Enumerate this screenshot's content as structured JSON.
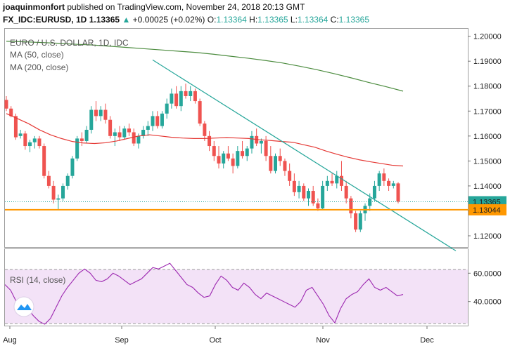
{
  "header": {
    "author": "joaquinmonfort",
    "published_text": "published on TradingView.com, November 24, 2018 20:13 GMT",
    "symbol": "FX_IDC:EURUSD, 1D",
    "last": "1.13365",
    "change": "+0.00025 (+0.02%)",
    "o_label": "O:",
    "o_value": "1.13364",
    "h_label": "H:",
    "h_value": "1.13365",
    "l_label": "L:",
    "l_value": "1.13364",
    "c_label": "C:",
    "c_value": "1.13365"
  },
  "colors": {
    "up": "#26a69a",
    "down": "#ef5350",
    "ma50": "#e53935",
    "ma200": "#4c8c3f",
    "trendline": "#26a69a",
    "support": "#ff9800",
    "rsi_line": "#9c27b0",
    "rsi_band": "#f3e2f7"
  },
  "chart_data": [
    {
      "type": "candlestick",
      "title": "EURO / U.S. DOLLAR, 1D, IDC",
      "legend": [
        "MA (50, close)",
        "MA (200, close)"
      ],
      "x_tick_labels": [
        "Aug",
        "Sep",
        "Oct",
        "Nov",
        "Dec"
      ],
      "y_tick_labels": [
        "1.12000",
        "1.13000",
        "1.14000",
        "1.15000",
        "1.16000",
        "1.17000",
        "1.18000",
        "1.19000",
        "1.20000"
      ],
      "ylim": [
        1.1155,
        1.203
      ],
      "price_tags": [
        "1.13365",
        "1.13044"
      ],
      "last_price": 1.13365,
      "support_level": 1.13044,
      "trendline": [
        [
          1.1905,
          1.114
        ]
      ],
      "candles": [
        [
          1.1745,
          1.176,
          1.17,
          1.171
        ],
        [
          1.171,
          1.172,
          1.1675,
          1.168
        ],
        [
          1.168,
          1.169,
          1.1585,
          1.1595
        ],
        [
          1.16,
          1.1625,
          1.159,
          1.161
        ],
        [
          1.161,
          1.162,
          1.1545,
          1.156
        ],
        [
          1.156,
          1.1585,
          1.1535,
          1.1575
        ],
        [
          1.1575,
          1.16,
          1.155,
          1.159
        ],
        [
          1.159,
          1.16,
          1.155,
          1.156
        ],
        [
          1.156,
          1.157,
          1.143,
          1.144
        ],
        [
          1.144,
          1.146,
          1.139,
          1.14
        ],
        [
          1.14,
          1.142,
          1.133,
          1.1345
        ],
        [
          1.1345,
          1.1365,
          1.1305,
          1.135
        ],
        [
          1.135,
          1.141,
          1.134,
          1.14
        ],
        [
          1.14,
          1.145,
          1.1385,
          1.144
        ],
        [
          1.144,
          1.152,
          1.143,
          1.151
        ],
        [
          1.151,
          1.16,
          1.15,
          1.159
        ],
        [
          1.159,
          1.1615,
          1.156,
          1.158
        ],
        [
          1.158,
          1.164,
          1.157,
          1.1625
        ],
        [
          1.1625,
          1.172,
          1.161,
          1.1705
        ],
        [
          1.1705,
          1.174,
          1.166,
          1.168
        ],
        [
          1.168,
          1.172,
          1.166,
          1.1705
        ],
        [
          1.1705,
          1.173,
          1.165,
          1.1665
        ],
        [
          1.1665,
          1.168,
          1.159,
          1.16
        ],
        [
          1.16,
          1.163,
          1.156,
          1.1615
        ],
        [
          1.1615,
          1.164,
          1.158,
          1.1595
        ],
        [
          1.1595,
          1.164,
          1.1585,
          1.163
        ],
        [
          1.163,
          1.165,
          1.16,
          1.1615
        ],
        [
          1.1615,
          1.163,
          1.156,
          1.157
        ],
        [
          1.157,
          1.161,
          1.155,
          1.16
        ],
        [
          1.16,
          1.164,
          1.159,
          1.1625
        ],
        [
          1.1625,
          1.166,
          1.16,
          1.164
        ],
        [
          1.164,
          1.17,
          1.162,
          1.168
        ],
        [
          1.168,
          1.17,
          1.163,
          1.164
        ],
        [
          1.164,
          1.17,
          1.163,
          1.169
        ],
        [
          1.169,
          1.175,
          1.167,
          1.173
        ],
        [
          1.173,
          1.179,
          1.171,
          1.177
        ],
        [
          1.177,
          1.18,
          1.171,
          1.172
        ],
        [
          1.172,
          1.18,
          1.17,
          1.178
        ],
        [
          1.178,
          1.181,
          1.175,
          1.176
        ],
        [
          1.176,
          1.18,
          1.174,
          1.178
        ],
        [
          1.178,
          1.179,
          1.173,
          1.174
        ],
        [
          1.174,
          1.175,
          1.164,
          1.165
        ],
        [
          1.165,
          1.166,
          1.158,
          1.16
        ],
        [
          1.16,
          1.162,
          1.154,
          1.156
        ],
        [
          1.156,
          1.158,
          1.15,
          1.152
        ],
        [
          1.152,
          1.156,
          1.147,
          1.149
        ],
        [
          1.149,
          1.154,
          1.147,
          1.153
        ],
        [
          1.153,
          1.156,
          1.15,
          1.151
        ],
        [
          1.151,
          1.153,
          1.145,
          1.148
        ],
        [
          1.148,
          1.156,
          1.147,
          1.154
        ],
        [
          1.154,
          1.158,
          1.151,
          1.152
        ],
        [
          1.152,
          1.156,
          1.15,
          1.155
        ],
        [
          1.155,
          1.162,
          1.153,
          1.16
        ],
        [
          1.16,
          1.163,
          1.156,
          1.157
        ],
        [
          1.157,
          1.159,
          1.153,
          1.158
        ],
        [
          1.158,
          1.16,
          1.15,
          1.152
        ],
        [
          1.152,
          1.156,
          1.145,
          1.146
        ],
        [
          1.146,
          1.153,
          1.145,
          1.152
        ],
        [
          1.152,
          1.155,
          1.148,
          1.15
        ],
        [
          1.15,
          1.151,
          1.144,
          1.146
        ],
        [
          1.146,
          1.149,
          1.14,
          1.142
        ],
        [
          1.142,
          1.145,
          1.136,
          1.1375
        ],
        [
          1.1375,
          1.142,
          1.135,
          1.14
        ],
        [
          1.14,
          1.141,
          1.134,
          1.135
        ],
        [
          1.135,
          1.139,
          1.132,
          1.138
        ],
        [
          1.138,
          1.14,
          1.132,
          1.133
        ],
        [
          1.133,
          1.135,
          1.13,
          1.131
        ],
        [
          1.131,
          1.142,
          1.1305,
          1.14
        ],
        [
          1.14,
          1.144,
          1.138,
          1.142
        ],
        [
          1.142,
          1.145,
          1.14,
          1.141
        ],
        [
          1.141,
          1.146,
          1.139,
          1.144
        ],
        [
          1.144,
          1.15,
          1.138,
          1.14
        ],
        [
          1.14,
          1.142,
          1.133,
          1.135
        ],
        [
          1.135,
          1.136,
          1.127,
          1.129
        ],
        [
          1.129,
          1.13,
          1.1215,
          1.1225
        ],
        [
          1.1225,
          1.13,
          1.1215,
          1.129
        ],
        [
          1.129,
          1.133,
          1.126,
          1.132
        ],
        [
          1.132,
          1.137,
          1.13,
          1.135
        ],
        [
          1.135,
          1.142,
          1.134,
          1.14
        ],
        [
          1.14,
          1.146,
          1.138,
          1.145
        ],
        [
          1.145,
          1.147,
          1.14,
          1.142
        ],
        [
          1.142,
          1.143,
          1.138,
          1.14
        ],
        [
          1.14,
          1.142,
          1.139,
          1.141
        ],
        [
          1.141,
          1.1415,
          1.133,
          1.1337
        ]
      ],
      "ma50": [
        1.169,
        1.167,
        1.165,
        1.1625,
        1.1605,
        1.159,
        1.1578,
        1.1572,
        1.157,
        1.1573,
        1.158,
        1.159,
        1.16,
        1.1605,
        1.16,
        1.1595,
        1.1592,
        1.159,
        1.159,
        1.1592,
        1.1594,
        1.1592,
        1.159,
        1.1585,
        1.1582,
        1.1578,
        1.1575,
        1.1565,
        1.1555,
        1.154,
        1.1527,
        1.1515,
        1.1505,
        1.1497,
        1.149,
        1.1483,
        1.148
      ],
      "ma200": [
        1.198,
        1.1978,
        1.1975,
        1.1972,
        1.1968,
        1.1965,
        1.196,
        1.1955,
        1.195,
        1.1945,
        1.194,
        1.1935,
        1.1928,
        1.192,
        1.1912,
        1.1903,
        1.1893,
        1.188,
        1.1866,
        1.185,
        1.1833,
        1.1815,
        1.1798,
        1.178
      ]
    },
    {
      "type": "line",
      "title": "RSI (14, close)",
      "y_tick_labels": [
        "60.0000",
        "40.0000"
      ],
      "ylim": [
        23,
        77
      ],
      "band": [
        30,
        70
      ],
      "values": [
        52,
        48,
        40,
        38,
        35,
        30,
        26,
        24,
        28,
        36,
        44,
        50,
        55,
        60,
        63,
        60,
        55,
        54,
        56,
        60,
        58,
        55,
        52,
        54,
        56,
        60,
        64,
        63,
        65,
        67,
        62,
        57,
        52,
        50,
        46,
        43,
        44,
        52,
        58,
        55,
        50,
        48,
        53,
        50,
        45,
        42,
        46,
        44,
        42,
        40,
        38,
        36,
        40,
        48,
        50,
        44,
        38,
        30,
        25,
        35,
        42,
        45,
        47,
        52,
        56,
        50,
        48,
        50,
        47,
        44,
        45
      ]
    }
  ],
  "logo_icon": "cloud-logo-icon"
}
